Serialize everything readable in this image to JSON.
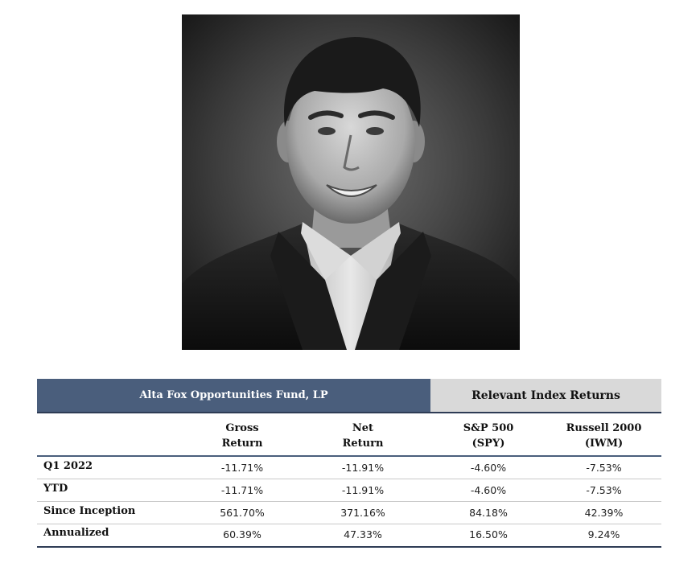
{
  "table": {
    "fund_header": "Alta Fox Opportunities Fund, LP",
    "index_header": "Relevant Index Returns",
    "columns": [
      {
        "line1": "Gross",
        "line2": "Return"
      },
      {
        "line1": "Net",
        "line2": "Return"
      },
      {
        "line1": "S&P 500",
        "line2": "(SPY)"
      },
      {
        "line1": "Russell 2000",
        "line2": "(IWM)"
      }
    ],
    "rows": [
      {
        "label": "Q1 2022",
        "gross": "-11.71%",
        "net": "-11.91%",
        "spy": "-4.60%",
        "iwm": "-7.53%"
      },
      {
        "label": "YTD",
        "gross": "-11.71%",
        "net": "-11.91%",
        "spy": "-4.60%",
        "iwm": "-7.53%"
      },
      {
        "label": "Since Inception",
        "gross": "561.70%",
        "net": "371.16%",
        "spy": "84.18%",
        "iwm": "42.39%"
      },
      {
        "label": "Annualized",
        "gross": "60.39%",
        "net": "47.33%",
        "spy": "16.50%",
        "iwm": "9.24%"
      }
    ]
  },
  "colors": {
    "fund_header_bg": "#4a5e7c",
    "index_header_bg": "#d9d9d9",
    "rule": "#2e3c55"
  }
}
